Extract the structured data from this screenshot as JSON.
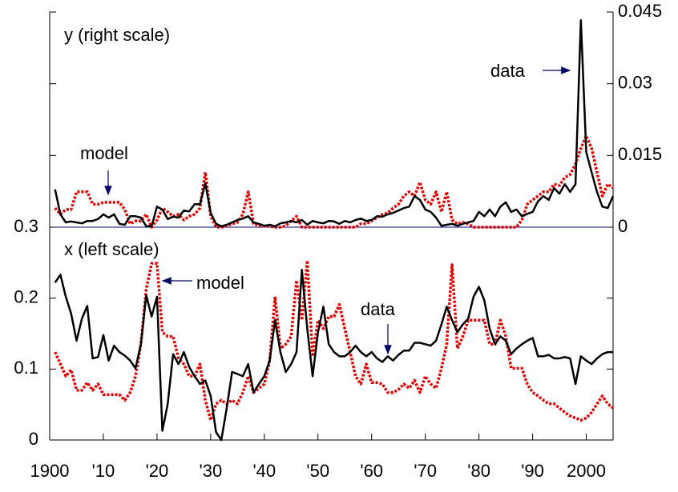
{
  "chart_data": [
    {
      "type": "line",
      "label": "y (right scale)",
      "y_axis_side": "right",
      "xlim": [
        1900,
        2005
      ],
      "ylim": [
        0,
        0.045
      ],
      "yticks": [
        0,
        0.015,
        0.03,
        0.045
      ],
      "x": [
        1901,
        1902,
        1903,
        1904,
        1905,
        1906,
        1907,
        1908,
        1909,
        1910,
        1911,
        1912,
        1913,
        1914,
        1915,
        1916,
        1917,
        1918,
        1919,
        1920,
        1921,
        1922,
        1923,
        1924,
        1925,
        1926,
        1927,
        1928,
        1929,
        1930,
        1931,
        1932,
        1933,
        1934,
        1935,
        1936,
        1937,
        1938,
        1939,
        1940,
        1941,
        1942,
        1943,
        1944,
        1945,
        1946,
        1947,
        1948,
        1949,
        1950,
        1951,
        1952,
        1953,
        1954,
        1955,
        1956,
        1957,
        1958,
        1959,
        1960,
        1961,
        1962,
        1963,
        1964,
        1965,
        1966,
        1967,
        1968,
        1969,
        1970,
        1971,
        1972,
        1973,
        1974,
        1975,
        1976,
        1977,
        1978,
        1979,
        1980,
        1981,
        1982,
        1983,
        1984,
        1985,
        1986,
        1987,
        1988,
        1989,
        1990,
        1991,
        1992,
        1993,
        1994,
        1995,
        1996,
        1997,
        1998,
        1999,
        2000,
        2001,
        2002,
        2003,
        2004,
        2005
      ],
      "series": [
        {
          "name": "model",
          "color": "#e00000",
          "style": "dotted",
          "values": [
            0.004,
            0.0027,
            0.0037,
            0.0037,
            0.0074,
            0.0074,
            0.0074,
            0.0048,
            0.0048,
            0.0052,
            0.0052,
            0.0052,
            0.0052,
            0.0037,
            0.0007,
            0.0013,
            0.0013,
            0.0027,
            0,
            0.0015,
            0.004,
            0.0032,
            0.0023,
            0.0027,
            0.0015,
            0.0023,
            0.0027,
            0.004,
            0.0115,
            0.0023,
            0,
            0,
            0.0003,
            0.0007,
            0.001,
            0.0027,
            0.0074,
            0.0007,
            0.0003,
            0.0002,
            0.0002,
            0,
            0,
            0.0003,
            0.0013,
            0.0023,
            0,
            0,
            0,
            0,
            0,
            0,
            0,
            0,
            0,
            0,
            0,
            0.0007,
            0.0007,
            0.0013,
            0.002,
            0.0027,
            0.003,
            0.004,
            0.0048,
            0.0065,
            0.0074,
            0.0065,
            0.0094,
            0.0057,
            0.0048,
            0.0074,
            0.0032,
            0.0074,
            0.0015,
            0.0007,
            0.001,
            0.0007,
            0,
            0,
            0,
            0,
            0,
            0,
            0,
            0,
            0,
            0.0015,
            0.0048,
            0.0057,
            0.0065,
            0.0074,
            0.0074,
            0.009,
            0.0087,
            0.0104,
            0.011,
            0.0132,
            0.0165,
            0.0191,
            0.0165,
            0.0115,
            0.0065,
            0.009,
            0.0082
          ]
        },
        {
          "name": "data",
          "color": "#000000",
          "style": "solid",
          "values": [
            0.0079,
            0.0027,
            0.001,
            0.0012,
            0.001,
            0.0008,
            0.0013,
            0.0013,
            0.0017,
            0.0027,
            0.002,
            0.0027,
            0.0007,
            0.0005,
            0.0023,
            0.0023,
            0.002,
            0.0002,
            0.0002,
            0.0043,
            0.0037,
            0.0017,
            0.0022,
            0.002,
            0.0035,
            0.0033,
            0.0048,
            0.0048,
            0.0092,
            0.003,
            0.0007,
            0.0002,
            0.0005,
            0.001,
            0.0015,
            0.0018,
            0.0023,
            0.001,
            0.0007,
            0.0003,
            0.0005,
            0.0002,
            0.0008,
            0.001,
            0.0013,
            0.001,
            0.0015,
            0.0005,
            0.0013,
            0.001,
            0.0008,
            0.0013,
            0.0012,
            0.0007,
            0.0013,
            0.001,
            0.0015,
            0.0018,
            0.0013,
            0.0015,
            0.0023,
            0.0022,
            0.0027,
            0.003,
            0.0035,
            0.004,
            0.0043,
            0.0065,
            0.0057,
            0.0037,
            0.0032,
            0.002,
            0.0003,
            0.0005,
            0.0007,
            0.0003,
            0.0007,
            0.001,
            0.0013,
            0.0032,
            0.0023,
            0.0037,
            0.0023,
            0.0043,
            0.0052,
            0.0032,
            0.0037,
            0.0023,
            0.0028,
            0.0032,
            0.0054,
            0.0065,
            0.0057,
            0.0082,
            0.007,
            0.009,
            0.0074,
            0.009,
            0.0433,
            0.0157,
            0.0115,
            0.0074,
            0.0043,
            0.004,
            0.0065
          ]
        }
      ],
      "annotations": [
        {
          "text": "model"
        },
        {
          "text": "data"
        }
      ]
    },
    {
      "type": "line",
      "label": "x (left scale)",
      "y_axis_side": "left",
      "xlim": [
        1900,
        2005
      ],
      "ylim": [
        0,
        0.3
      ],
      "yticks": [
        0,
        0.1,
        0.2,
        0.3
      ],
      "xticks": [
        {
          "value": 1900,
          "label": "1900"
        },
        {
          "value": 1910,
          "label": "'10"
        },
        {
          "value": 1920,
          "label": "'20"
        },
        {
          "value": 1930,
          "label": "'30"
        },
        {
          "value": 1940,
          "label": "'40"
        },
        {
          "value": 1950,
          "label": "'50"
        },
        {
          "value": 1960,
          "label": "'60"
        },
        {
          "value": 1970,
          "label": "'70"
        },
        {
          "value": 1980,
          "label": "'80"
        },
        {
          "value": 1990,
          "label": "'90"
        },
        2000
      ],
      "x": [
        1901,
        1902,
        1903,
        1904,
        1905,
        1906,
        1907,
        1908,
        1909,
        1910,
        1911,
        1912,
        1913,
        1914,
        1915,
        1916,
        1917,
        1918,
        1919,
        1920,
        1921,
        1922,
        1923,
        1924,
        1925,
        1926,
        1927,
        1928,
        1929,
        1930,
        1931,
        1932,
        1933,
        1934,
        1935,
        1936,
        1937,
        1938,
        1939,
        1940,
        1941,
        1942,
        1943,
        1944,
        1945,
        1946,
        1947,
        1948,
        1949,
        1950,
        1951,
        1952,
        1953,
        1954,
        1955,
        1956,
        1957,
        1958,
        1959,
        1960,
        1961,
        1962,
        1963,
        1964,
        1965,
        1966,
        1967,
        1968,
        1969,
        1970,
        1971,
        1972,
        1973,
        1974,
        1975,
        1976,
        1977,
        1978,
        1979,
        1980,
        1981,
        1982,
        1983,
        1984,
        1985,
        1986,
        1987,
        1988,
        1989,
        1990,
        1991,
        1992,
        1993,
        1994,
        1995,
        1996,
        1997,
        1998,
        1999,
        2000,
        2001,
        2002,
        2003,
        2004,
        2005
      ],
      "series": [
        {
          "name": "model",
          "color": "#e00000",
          "style": "dotted",
          "values": [
            0.124,
            0.107,
            0.09,
            0.099,
            0.07,
            0.07,
            0.081,
            0.07,
            0.079,
            0.064,
            0.064,
            0.064,
            0.064,
            0.056,
            0.067,
            0.09,
            0.135,
            0.213,
            0.249,
            0.249,
            0.152,
            0.146,
            0.146,
            0.115,
            0.107,
            0.09,
            0.09,
            0.107,
            0.056,
            0.028,
            0.051,
            0.056,
            0.051,
            0.056,
            0.051,
            0.067,
            0.09,
            0.067,
            0.073,
            0.079,
            0.112,
            0.202,
            0.129,
            0.135,
            0.146,
            0.225,
            0.169,
            0.253,
            0.118,
            0.169,
            0.157,
            0.174,
            0.174,
            0.191,
            0.157,
            0.124,
            0.09,
            0.079,
            0.107,
            0.081,
            0.081,
            0.079,
            0.067,
            0.067,
            0.071,
            0.079,
            0.073,
            0.084,
            0.067,
            0.09,
            0.079,
            0.073,
            0.101,
            0.135,
            0.247,
            0.129,
            0.146,
            0.169,
            0.169,
            0.169,
            0.169,
            0.135,
            0.135,
            0.169,
            0.146,
            0.101,
            0.101,
            0.101,
            0.079,
            0.067,
            0.062,
            0.056,
            0.051,
            0.051,
            0.045,
            0.039,
            0.034,
            0.031,
            0.028,
            0.031,
            0.039,
            0.051,
            0.062,
            0.051,
            0.045
          ]
        },
        {
          "name": "data",
          "color": "#000000",
          "style": "solid",
          "values": [
            0.222,
            0.233,
            0.202,
            0.178,
            0.14,
            0.171,
            0.189,
            0.115,
            0.117,
            0.148,
            0.112,
            0.133,
            0.124,
            0.119,
            0.112,
            0.101,
            0.135,
            0.204,
            0.174,
            0.202,
            0.013,
            0.051,
            0.121,
            0.107,
            0.124,
            0.103,
            0.09,
            0.079,
            0.084,
            0.062,
            0.011,
            0,
            0.045,
            0.096,
            0.093,
            0.09,
            0.107,
            0.067,
            0.079,
            0.09,
            0.112,
            0.169,
            0.124,
            0.096,
            0.107,
            0.124,
            0.24,
            0.157,
            0.09,
            0.152,
            0.188,
            0.135,
            0.124,
            0.118,
            0.118,
            0.124,
            0.133,
            0.124,
            0.118,
            0.124,
            0.115,
            0.11,
            0.118,
            0.112,
            0.12,
            0.126,
            0.126,
            0.137,
            0.137,
            0.135,
            0.133,
            0.14,
            0.163,
            0.188,
            0.169,
            0.152,
            0.163,
            0.171,
            0.202,
            0.216,
            0.197,
            0.157,
            0.135,
            0.146,
            0.14,
            0.121,
            0.129,
            0.135,
            0.14,
            0.144,
            0.118,
            0.118,
            0.12,
            0.115,
            0.115,
            0.117,
            0.115,
            0.079,
            0.118,
            0.112,
            0.107,
            0.115,
            0.121,
            0.124,
            0.124
          ]
        }
      ],
      "annotations": [
        {
          "text": "model"
        },
        {
          "text": "data"
        }
      ]
    }
  ]
}
